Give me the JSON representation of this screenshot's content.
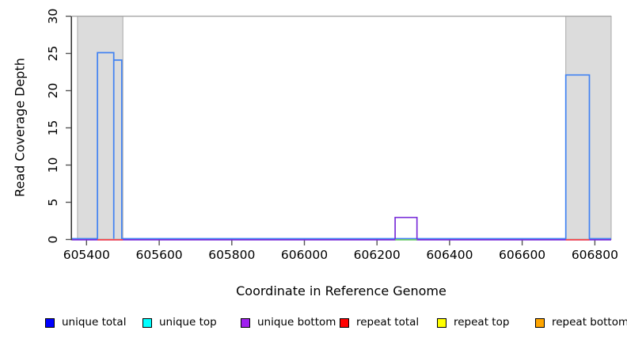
{
  "chart_data": {
    "type": "line",
    "title": "",
    "xlabel": "Coordinate in Reference Genome",
    "ylabel": "Read Coverage Depth",
    "xlim": [
      605360,
      606845
    ],
    "ylim": [
      0,
      30
    ],
    "x_ticks": [
      605400,
      605600,
      605800,
      606000,
      606200,
      606400,
      606600,
      606800
    ],
    "y_ticks": [
      0,
      5,
      10,
      15,
      20,
      25,
      30
    ],
    "grid": false,
    "colors": {
      "region_fill": "#DCDCDC",
      "region_border": "#A9A9A9",
      "axis": "#222222"
    },
    "shaded_regions": [
      {
        "name": "repeat-region-left",
        "x0": 605375,
        "x1": 605500
      },
      {
        "name": "repeat-region-right",
        "x0": 606720,
        "x1": 606845
      }
    ],
    "series": [
      {
        "id": "unique-total",
        "name": "unique total",
        "color": "#4182F2",
        "baseline": 0,
        "segments": [
          [
            605430,
            605475,
            25
          ],
          [
            605475,
            605497,
            24
          ],
          [
            606720,
            606785,
            22
          ]
        ]
      },
      {
        "id": "unique-bottom",
        "name": "unique bottom",
        "color": "#7A2FD9",
        "baseline": 0,
        "segments": [
          [
            606250,
            606310,
            3
          ]
        ]
      },
      {
        "id": "unique-top",
        "name": "unique top",
        "color": "#69C869",
        "baseline": null,
        "segments": [
          [
            606250,
            606310,
            0
          ]
        ]
      },
      {
        "id": "repeat-total",
        "name": "repeat total",
        "color": "#FA4B4B",
        "baseline": null,
        "segments": [
          [
            605430,
            605500,
            0
          ],
          [
            606720,
            606785,
            0
          ]
        ]
      }
    ],
    "legend": {
      "position": "bottom",
      "items": [
        {
          "label": "unique total",
          "color": "#0000FF"
        },
        {
          "label": "unique top",
          "color": "#00FFFF"
        },
        {
          "label": "unique bottom",
          "color": "#A020F0"
        },
        {
          "label": "repeat total",
          "color": "#FF0000"
        },
        {
          "label": "repeat top",
          "color": "#FFFF00"
        },
        {
          "label": "repeat bottom",
          "color": "#FFA500"
        }
      ]
    }
  }
}
